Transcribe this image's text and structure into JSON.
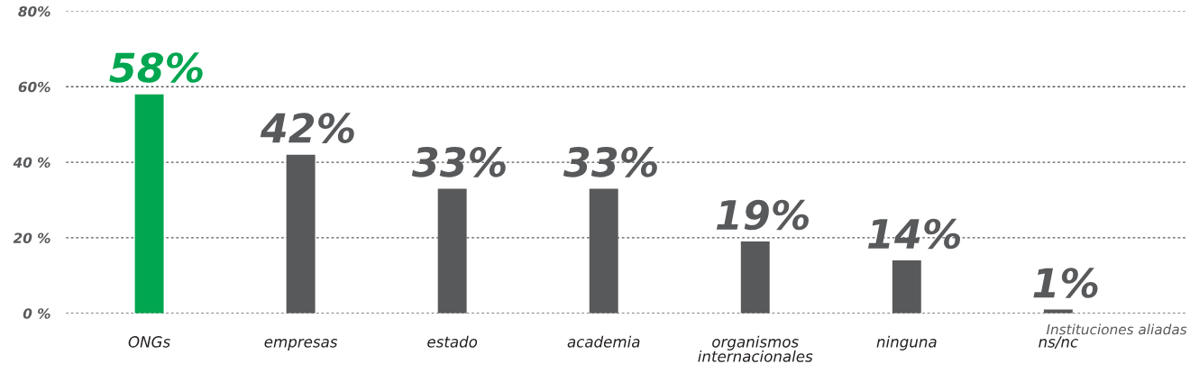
{
  "chart_data": {
    "type": "bar",
    "xlabel": "Instituciones aliadas",
    "categories": [
      "ONGs",
      "empresas",
      "estado",
      "academia",
      "organismos\ninternacionales",
      "ninguna",
      "ns/nc"
    ],
    "values": [
      58,
      42,
      33,
      33,
      19,
      14,
      1
    ],
    "colors": [
      "#00a650",
      "#58595b",
      "#58595b",
      "#58595b",
      "#58595b",
      "#58595b",
      "#58595b"
    ],
    "ylim": [
      0,
      80
    ],
    "yticks": [
      {
        "value": 0,
        "label": "0 %"
      },
      {
        "value": 20,
        "label": "20 %"
      },
      {
        "value": 40,
        "label": "40 %"
      },
      {
        "value": 60,
        "label": "60%"
      },
      {
        "value": 80,
        "label": "80%"
      }
    ],
    "value_labels": [
      "58%",
      "42%",
      "33%",
      "33%",
      "19%",
      "14%",
      "1%"
    ],
    "grid": "y"
  }
}
